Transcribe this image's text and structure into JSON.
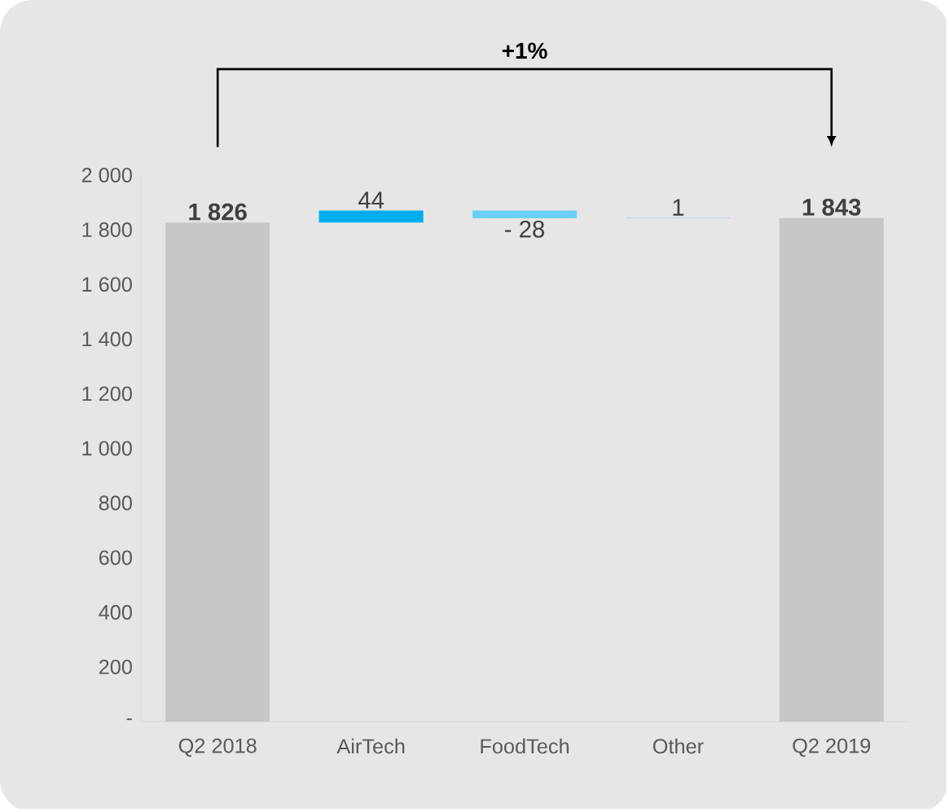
{
  "chart_data": {
    "type": "bar",
    "categories": [
      "Q2 2018",
      "AirTech",
      "FoodTech",
      "Other",
      "Q2 2019"
    ],
    "values": [
      1826,
      44,
      -28,
      1,
      1843
    ],
    "base": [
      0,
      1826,
      1870,
      1842,
      0
    ],
    "colors": [
      "#c6c7c9",
      "#00aeef",
      "#6dcff6",
      "#29abe2",
      "#c6c7c9"
    ],
    "value_labels": [
      "1 826",
      "44",
      "- 28",
      "1",
      "1 843"
    ],
    "ylim": [
      0,
      2000
    ],
    "yticks": [
      {
        "value": 0,
        "label": "-"
      },
      {
        "value": 200,
        "label": "200"
      },
      {
        "value": 400,
        "label": "400"
      },
      {
        "value": 600,
        "label": "600"
      },
      {
        "value": 800,
        "label": "800"
      },
      {
        "value": 1000,
        "label": "1 000"
      },
      {
        "value": 1200,
        "label": "1 200"
      },
      {
        "value": 1400,
        "label": "1 400"
      },
      {
        "value": 1600,
        "label": "1 600"
      },
      {
        "value": 1800,
        "label": "1 800"
      },
      {
        "value": 2000,
        "label": "2 000"
      }
    ],
    "annotations": [
      "+1%"
    ]
  }
}
